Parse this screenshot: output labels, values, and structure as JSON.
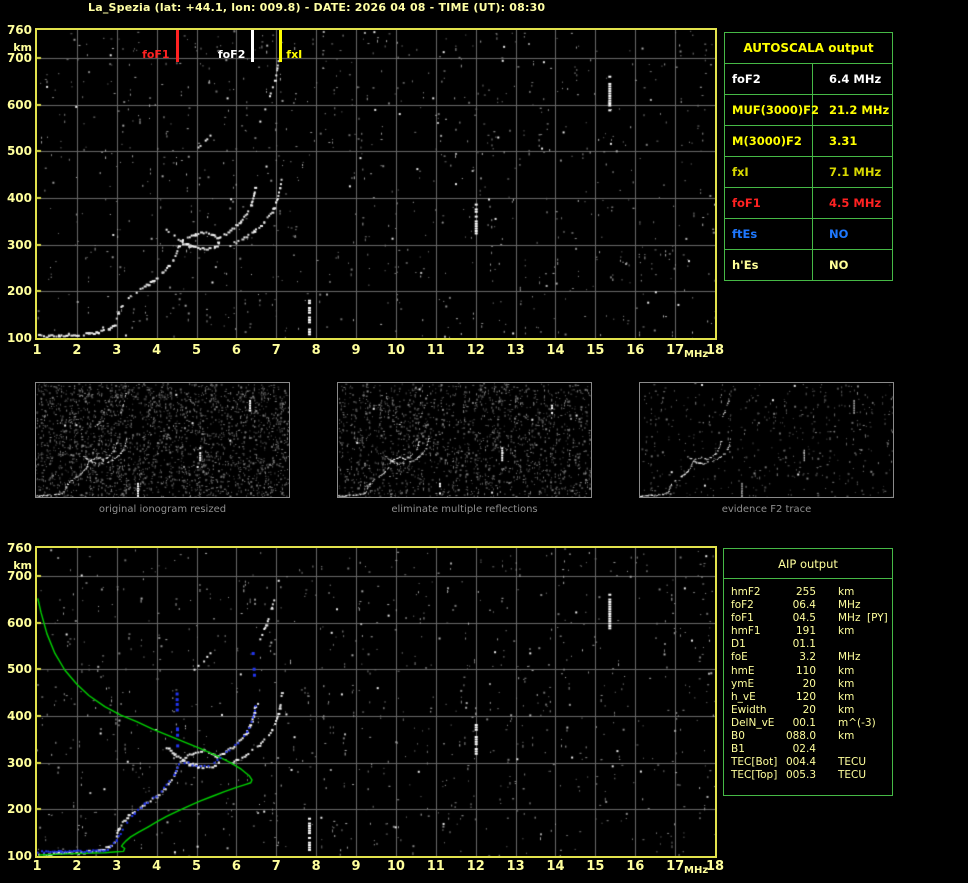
{
  "title": "La_Spezia (lat: +44.1, lon: 009.8) - DATE: 2026 04 08 - TIME (UT): 08:30",
  "colors": {
    "background": "#000000",
    "plot_border_yellow": "#e2e24c",
    "axis_text_pale_yellow": "#ffff9c",
    "grid_gray": "#686868",
    "noise_gray": "#a0a0a0",
    "trace_white": "#ffffff",
    "profile_green": "#00d400",
    "autoscaled_blue": "#2235ee",
    "table_border_green": "#46b946",
    "caption_gray": "#8f8f8f",
    "foF1_red": "#ff2222",
    "foF2_white": "#ffffff",
    "fxI_yellow": "#ffff00",
    "value_yellow": "#ffff00",
    "ftEs_blue": "#1e78ff"
  },
  "axes": {
    "mhz_ticks": [
      1,
      2,
      3,
      4,
      5,
      6,
      7,
      8,
      9,
      10,
      11,
      12,
      13,
      14,
      15,
      16,
      17,
      18
    ],
    "mhz_label": "MHz",
    "km_ticks": [
      760,
      700,
      600,
      500,
      400,
      300,
      200,
      100
    ],
    "km_label": "km"
  },
  "autoscala_table": {
    "header": "AUTOSCALA output",
    "rows": [
      {
        "label": "foF2",
        "value": "6.4 MHz",
        "color": "#ffffff"
      },
      {
        "label": "MUF(3000)F2",
        "value": "21.2 MHz",
        "color": "#ffff00"
      },
      {
        "label": "M(3000)F2",
        "value": "3.31",
        "color": "#ffff00"
      },
      {
        "label": "fxI",
        "value": "7.1 MHz",
        "color": "#d8d800"
      },
      {
        "label": "foF1",
        "value": "4.5 MHz",
        "color": "#ff2222"
      },
      {
        "label": "ftEs",
        "value": "NO",
        "color": "#1e78ff"
      },
      {
        "label": "h'Es",
        "value": "NO",
        "color": "#ffff99"
      }
    ]
  },
  "aip_table": {
    "header": "AIP output",
    "rows": [
      {
        "label": "hmF2",
        "value": "255",
        "unit": "km",
        "note": ""
      },
      {
        "label": "foF2",
        "value": "06.4",
        "unit": "MHz",
        "note": ""
      },
      {
        "label": "foF1",
        "value": "04.5",
        "unit": "MHz",
        "note": "[PY]"
      },
      {
        "label": "hmF1",
        "value": "191",
        "unit": "km",
        "note": ""
      },
      {
        "label": "D1",
        "value": "01.1",
        "unit": "",
        "note": ""
      },
      {
        "label": "foE",
        "value": "3.2",
        "unit": "MHz",
        "note": ""
      },
      {
        "label": "hmE",
        "value": "110",
        "unit": "km",
        "note": ""
      },
      {
        "label": "ymE",
        "value": "20",
        "unit": "km",
        "note": ""
      },
      {
        "label": "h_vE",
        "value": "120",
        "unit": "km",
        "note": ""
      },
      {
        "label": "Ewidth",
        "value": "20",
        "unit": "km",
        "note": ""
      },
      {
        "label": "DelN_vE",
        "value": "00.1",
        "unit": "m^(-3)",
        "note": ""
      },
      {
        "label": "B0",
        "value": "088.0",
        "unit": "km",
        "note": ""
      },
      {
        "label": "B1",
        "value": "02.4",
        "unit": "",
        "note": ""
      },
      {
        "label": "TEC[Bot]",
        "value": "004.4",
        "unit": "TECU",
        "note": ""
      },
      {
        "label": "TEC[Top]",
        "value": "005.3",
        "unit": "TECU",
        "note": ""
      }
    ]
  },
  "thumbnails": [
    {
      "caption": "original ionogram resized",
      "noise_count": 2100,
      "seed": 11
    },
    {
      "caption": "eliminate multiple reflections",
      "noise_count": 1500,
      "seed": 22
    },
    {
      "caption": "evidence F2 trace",
      "noise_count": 430,
      "seed": 33
    }
  ],
  "render": {
    "top_plot": {
      "noise_count": 820,
      "bright_count": 36,
      "seed": 101
    },
    "bottom_plot": {
      "noise_count": 820,
      "bright_count": 36,
      "seed": 202
    }
  },
  "chart_data": [
    {
      "id": "ionogram",
      "type": "scatter",
      "title": "ionogram echo trace (height km vs frequency MHz)",
      "xlabel": "MHz",
      "ylabel": "km",
      "xlim": [
        1,
        18
      ],
      "ylim": [
        100,
        760
      ],
      "grid": true,
      "series": [
        {
          "name": "E-region echo",
          "density": "dense",
          "points": [
            [
              1.05,
              104
            ],
            [
              1.3,
              103
            ],
            [
              1.55,
              105
            ],
            [
              1.8,
              107
            ],
            [
              2.05,
              106
            ],
            [
              2.3,
              109
            ],
            [
              2.55,
              112
            ],
            [
              2.8,
              118
            ],
            [
              2.95,
              129
            ]
          ]
        },
        {
          "name": "E-F retardation rise",
          "density": "normal",
          "points": [
            [
              3.0,
              142
            ],
            [
              3.05,
              157
            ],
            [
              3.15,
              171
            ],
            [
              3.3,
              185
            ],
            [
              3.5,
              197
            ]
          ]
        },
        {
          "name": "F1 ascending branch",
          "density": "normal",
          "points": [
            [
              3.6,
              204
            ],
            [
              3.8,
              215
            ],
            [
              4.0,
              227
            ],
            [
              4.15,
              239
            ],
            [
              4.3,
              253
            ],
            [
              4.42,
              267
            ],
            [
              4.5,
              282
            ],
            [
              4.56,
              297
            ]
          ]
        },
        {
          "name": "F1-F2 crossing branch",
          "density": "normal",
          "points": [
            [
              4.25,
              332
            ],
            [
              4.45,
              318
            ],
            [
              4.65,
              306
            ],
            [
              4.85,
              298
            ],
            [
              5.05,
              294
            ]
          ]
        },
        {
          "name": "F2 loop",
          "density": "normal",
          "points": [
            [
              4.6,
              304
            ],
            [
              4.78,
              314
            ],
            [
              4.98,
              322
            ],
            [
              5.18,
              325
            ],
            [
              5.38,
              321
            ],
            [
              5.52,
              312
            ],
            [
              5.56,
              302
            ],
            [
              5.46,
              293
            ],
            [
              5.26,
              289
            ],
            [
              5.04,
              291
            ],
            [
              4.82,
              296
            ],
            [
              4.66,
              302
            ]
          ]
        },
        {
          "name": "F2 ordinary trace",
          "density": "normal",
          "points": [
            [
              5.55,
              313
            ],
            [
              5.75,
              323
            ],
            [
              5.95,
              336
            ],
            [
              6.12,
              350
            ],
            [
              6.27,
              366
            ],
            [
              6.37,
              384
            ],
            [
              6.44,
              403
            ],
            [
              6.47,
              420
            ]
          ]
        },
        {
          "name": "F2 extraordinary trace",
          "density": "normal",
          "points": [
            [
              5.85,
              299
            ],
            [
              6.15,
              311
            ],
            [
              6.45,
              328
            ],
            [
              6.7,
              348
            ],
            [
              6.9,
              370
            ],
            [
              7.02,
              394
            ],
            [
              7.1,
              420
            ],
            [
              7.14,
              447
            ]
          ]
        },
        {
          "name": "second-hop echo high",
          "density": "sparse",
          "points": [
            [
              6.6,
              565
            ],
            [
              6.75,
              595
            ],
            [
              6.88,
              628
            ],
            [
              7.0,
              662
            ],
            [
              7.06,
              692
            ]
          ]
        },
        {
          "name": "second-hop echo low",
          "density": "sparse",
          "points": [
            [
              4.95,
              500
            ],
            [
              5.15,
              515
            ],
            [
              5.35,
              532
            ]
          ]
        }
      ],
      "markers": [
        {
          "label": "foF1",
          "mhz": 4.5,
          "color": "#ff2222",
          "side": "left"
        },
        {
          "label": "foF2",
          "mhz": 6.4,
          "color": "#ffffff",
          "side": "left"
        },
        {
          "label": "fxI",
          "mhz": 7.1,
          "color": "#ffff00",
          "side": "right"
        }
      ],
      "interference_streaks": [
        {
          "mhz": 7.82,
          "km": [
            107,
            182
          ]
        },
        {
          "mhz": 12.0,
          "km": [
            316,
            388
          ]
        },
        {
          "mhz": 15.35,
          "km": [
            588,
            662
          ]
        }
      ]
    },
    {
      "id": "profile",
      "type": "line",
      "title": "AIP inverted electron density profile over ionogram",
      "xlabel": "MHz",
      "ylabel": "km",
      "xlim": [
        1,
        18
      ],
      "ylim": [
        100,
        760
      ],
      "series": [
        {
          "name": "plasma frequency profile",
          "color": "#00d400",
          "points": [
            [
              1.05,
              102
            ],
            [
              1.6,
              104
            ],
            [
              2.2,
              106
            ],
            [
              2.7,
              107
            ],
            [
              3.0,
              109
            ],
            [
              3.17,
              110
            ],
            [
              3.2,
              116
            ],
            [
              3.12,
              121
            ],
            [
              3.17,
              127
            ],
            [
              3.24,
              133
            ],
            [
              3.35,
              141
            ],
            [
              3.55,
              151
            ],
            [
              3.78,
              162
            ],
            [
              4.0,
              173
            ],
            [
              4.25,
              185
            ],
            [
              4.5,
              195
            ],
            [
              4.8,
              207
            ],
            [
              5.1,
              218
            ],
            [
              5.4,
              228
            ],
            [
              5.7,
              238
            ],
            [
              6.0,
              247
            ],
            [
              6.22,
              253
            ],
            [
              6.36,
              257
            ],
            [
              6.39,
              263
            ],
            [
              6.32,
              272
            ],
            [
              6.12,
              286
            ],
            [
              5.85,
              300
            ],
            [
              5.5,
              315
            ],
            [
              5.1,
              330
            ],
            [
              4.7,
              344
            ],
            [
              4.3,
              358
            ],
            [
              3.9,
              372
            ],
            [
              3.5,
              388
            ],
            [
              3.1,
              402
            ],
            [
              2.7,
              420
            ],
            [
              2.3,
              444
            ],
            [
              2.0,
              468
            ],
            [
              1.7,
              498
            ],
            [
              1.45,
              534
            ],
            [
              1.25,
              576
            ],
            [
              1.1,
              622
            ],
            [
              1.02,
              652
            ]
          ]
        },
        {
          "name": "autoscaled trace points",
          "color": "#2235ee",
          "segments": [
            {
              "mode": "dense",
              "points": [
                [
                  1.02,
                  109
                ],
                [
                  1.6,
                  109
                ],
                [
                  2.2,
                  110
                ],
                [
                  2.72,
                  110
                ]
              ]
            },
            {
              "mode": "normal",
              "points": [
                [
                  2.78,
                  112
                ],
                [
                  3.0,
                  134
                ],
                [
                  3.2,
                  163
                ],
                [
                  3.45,
                  192
                ],
                [
                  3.7,
                  211
                ],
                [
                  4.0,
                  229
                ],
                [
                  4.25,
                  251
                ],
                [
                  4.45,
                  274
                ],
                [
                  4.56,
                  296
                ]
              ]
            },
            {
              "mode": "column",
              "points": [
                [
                  4.52,
                  300
                ],
                [
                  4.51,
                  372
                ],
                [
                  4.5,
                  448
                ]
              ]
            },
            {
              "mode": "normal",
              "points": [
                [
                  4.7,
                  301
                ],
                [
                  5.0,
                  293
                ],
                [
                  5.3,
                  292
                ],
                [
                  5.6,
                  311
                ],
                [
                  5.9,
                  331
                ],
                [
                  6.12,
                  349
                ],
                [
                  6.27,
                  366
                ],
                [
                  6.38,
                  386
                ],
                [
                  6.45,
                  405
                ],
                [
                  6.48,
                  420
                ]
              ]
            },
            {
              "mode": "column",
              "points": [
                [
                  6.47,
                  428
                ],
                [
                  6.44,
                  488
                ],
                [
                  6.4,
                  545
                ]
              ]
            }
          ]
        }
      ]
    },
    {
      "id": "thumbnails",
      "type": "scatter",
      "note": "three processing-step miniatures of the same ionogram trace",
      "source": "ionogram",
      "captions": [
        "original ionogram resized",
        "eliminate multiple reflections",
        "evidence F2 trace"
      ]
    }
  ]
}
